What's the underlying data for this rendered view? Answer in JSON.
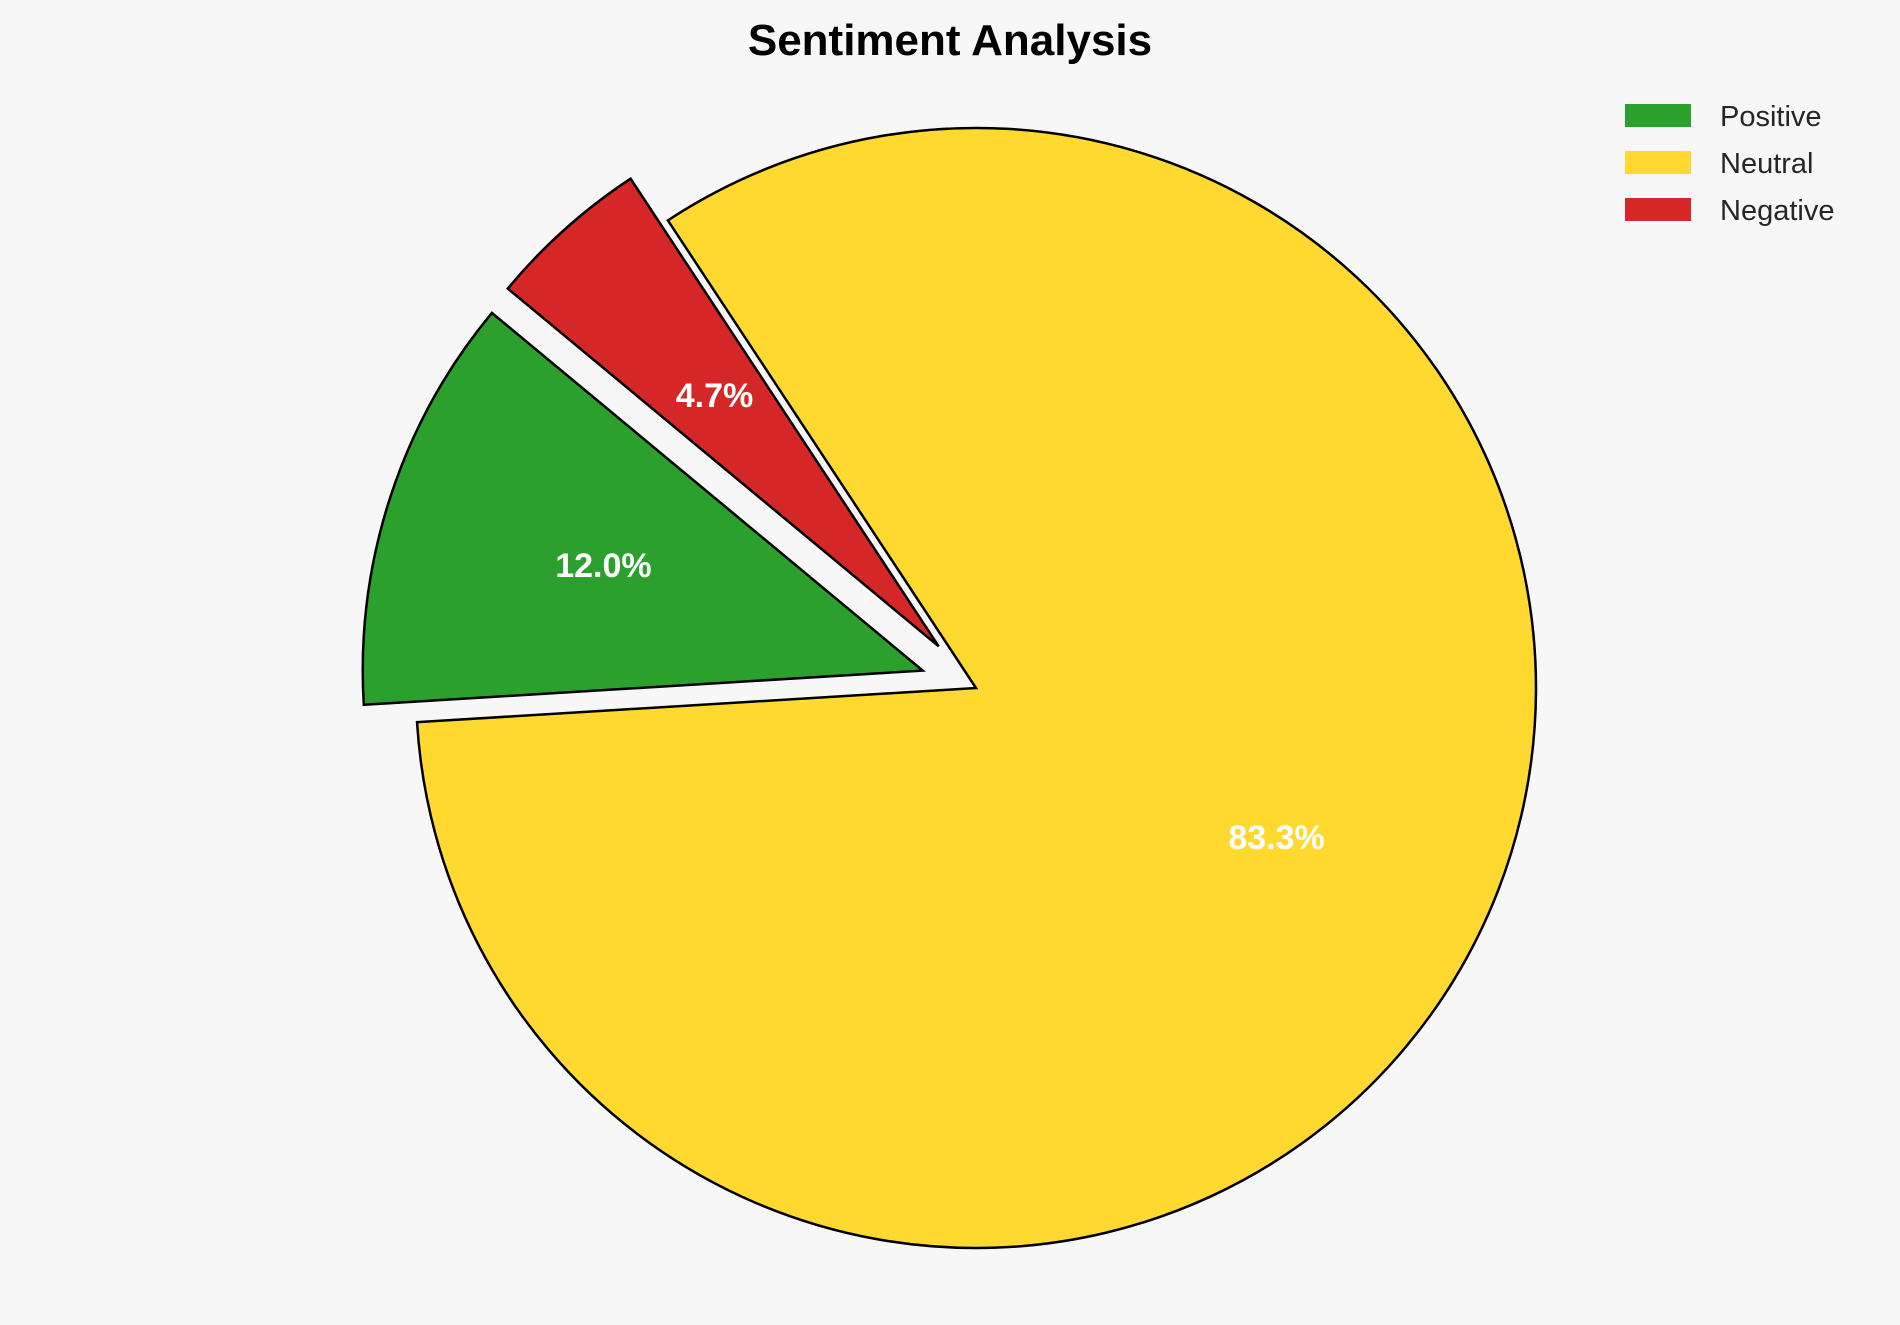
{
  "chart_data": {
    "type": "pie",
    "title": "Sentiment Analysis",
    "categories": [
      "Positive",
      "Neutral",
      "Negative"
    ],
    "values": [
      12.0,
      83.3,
      4.7
    ],
    "labels": [
      "12.0%",
      "83.3%",
      "4.7%"
    ],
    "colors": [
      "#2ca02c",
      "#ffd92f",
      "#d62728"
    ],
    "exploded": [
      true,
      false,
      true
    ],
    "edge_color": "#000000",
    "legend": {
      "placement": "top-right",
      "entries": [
        "Positive",
        "Neutral",
        "Negative"
      ]
    },
    "background": "#f7f7f7"
  }
}
